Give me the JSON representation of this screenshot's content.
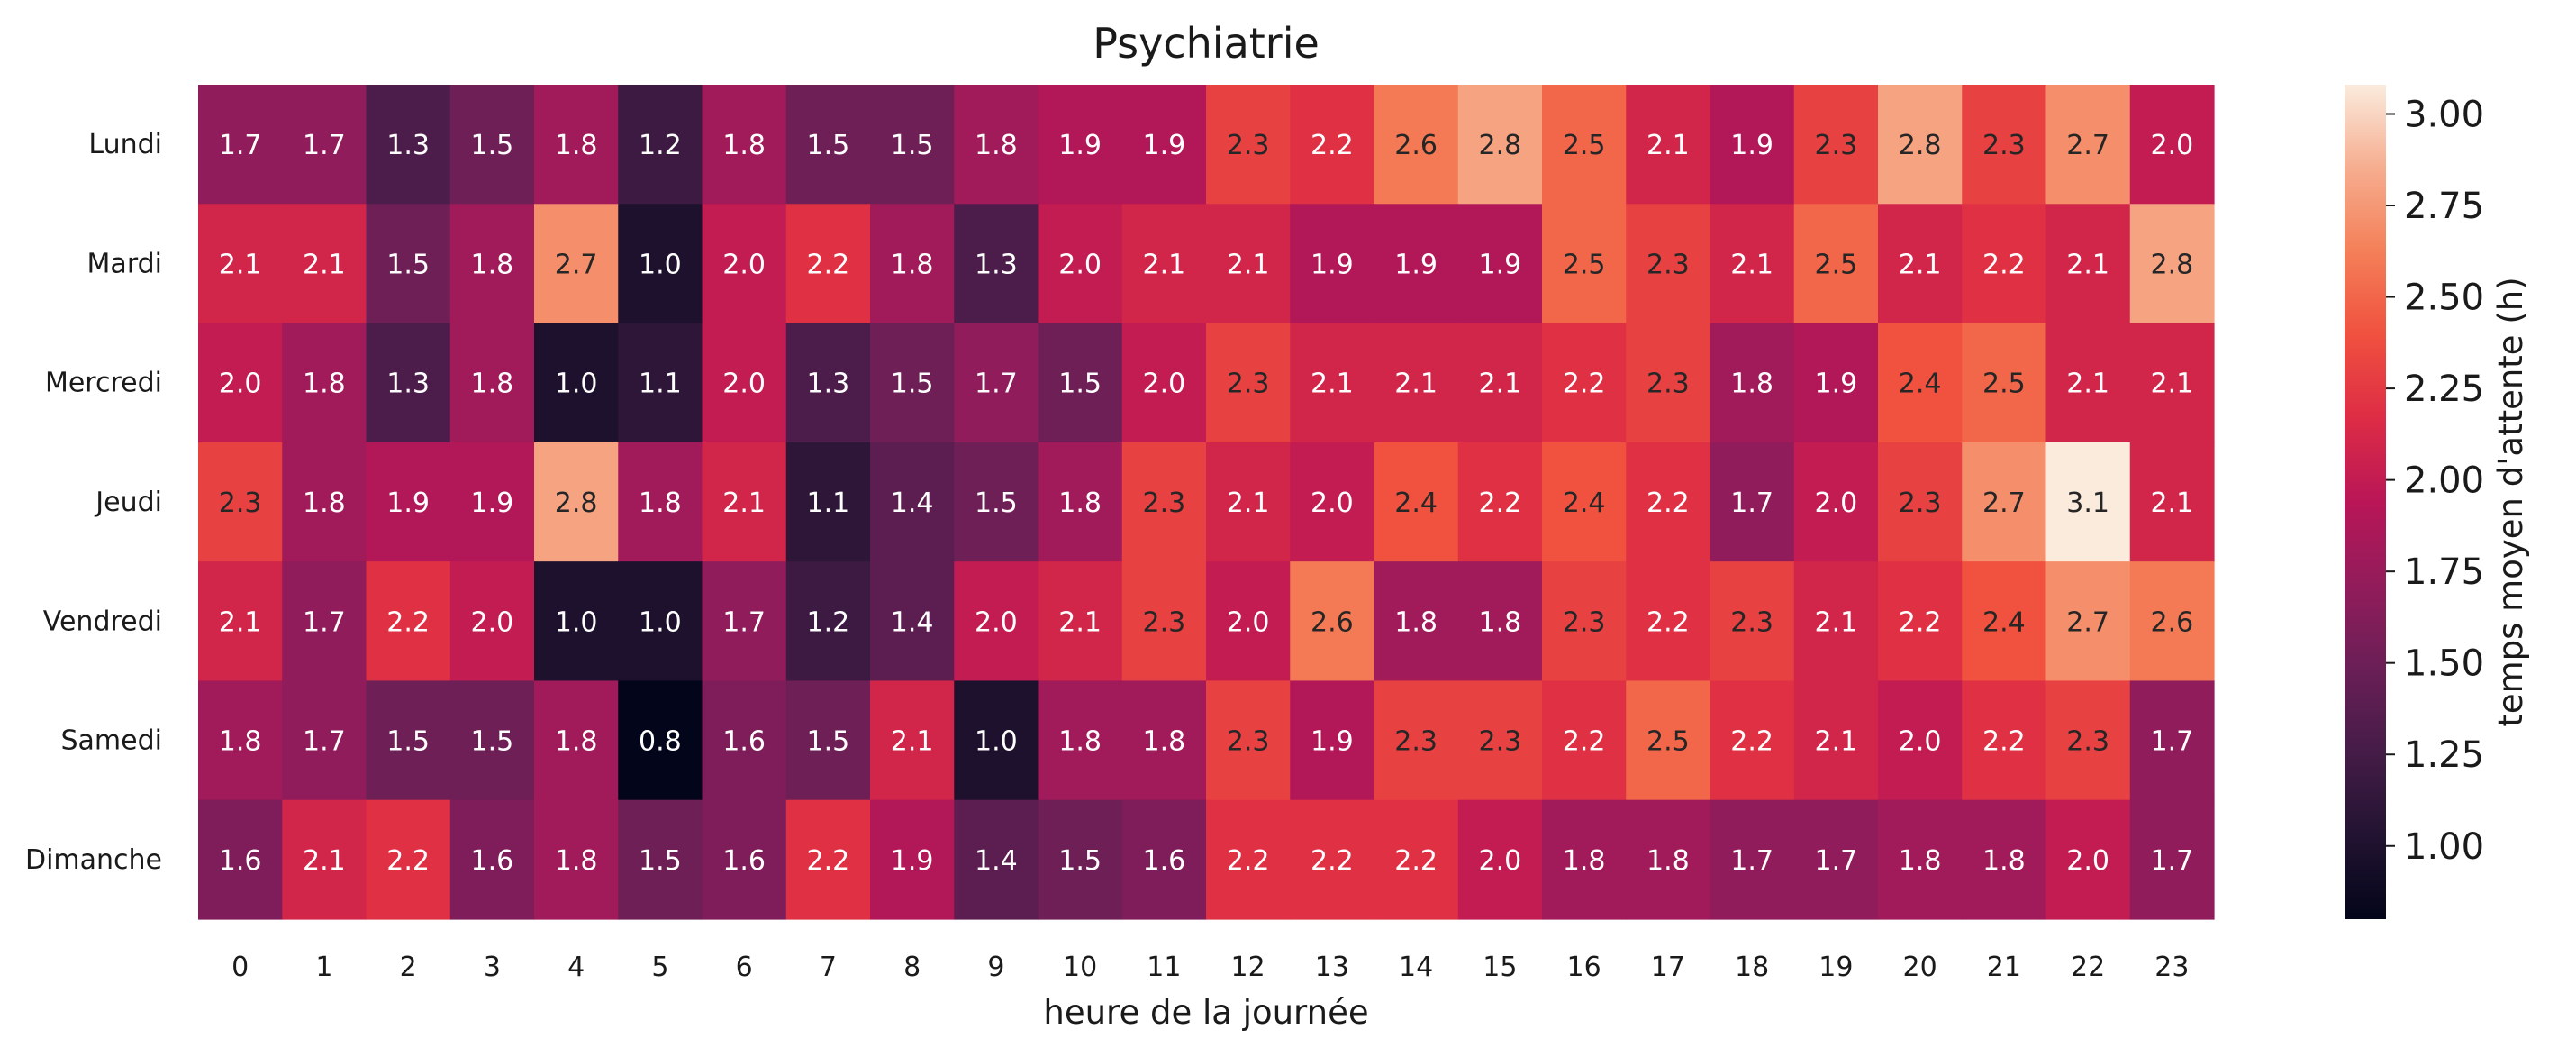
{
  "chart_data": {
    "type": "heatmap",
    "title": "Psychiatrie",
    "xlabel": "heure de la journée",
    "colorbar_label": "temps moyen d'attente (h)",
    "x_categories": [
      "0",
      "1",
      "2",
      "3",
      "4",
      "5",
      "6",
      "7",
      "8",
      "9",
      "10",
      "11",
      "12",
      "13",
      "14",
      "15",
      "16",
      "17",
      "18",
      "19",
      "20",
      "21",
      "22",
      "23"
    ],
    "y_categories": [
      "Lundi",
      "Mardi",
      "Mercredi",
      "Jeudi",
      "Vendredi",
      "Samedi",
      "Dimanche"
    ],
    "values": [
      [
        1.7,
        1.7,
        1.3,
        1.5,
        1.8,
        1.2,
        1.8,
        1.5,
        1.5,
        1.8,
        1.9,
        1.9,
        2.3,
        2.2,
        2.6,
        2.8,
        2.5,
        2.1,
        1.9,
        2.3,
        2.8,
        2.3,
        2.7,
        2.0
      ],
      [
        2.1,
        2.1,
        1.5,
        1.8,
        2.7,
        1.0,
        2.0,
        2.2,
        1.8,
        1.3,
        2.0,
        2.1,
        2.1,
        1.9,
        1.9,
        1.9,
        2.5,
        2.3,
        2.1,
        2.5,
        2.1,
        2.2,
        2.1,
        2.8
      ],
      [
        2.0,
        1.8,
        1.3,
        1.8,
        1.0,
        1.1,
        2.0,
        1.3,
        1.5,
        1.7,
        1.5,
        2.0,
        2.3,
        2.1,
        2.1,
        2.1,
        2.2,
        2.3,
        1.8,
        1.9,
        2.4,
        2.5,
        2.1,
        2.1
      ],
      [
        2.3,
        1.8,
        1.9,
        1.9,
        2.8,
        1.8,
        2.1,
        1.1,
        1.4,
        1.5,
        1.8,
        2.3,
        2.1,
        2.0,
        2.4,
        2.2,
        2.4,
        2.2,
        1.7,
        2.0,
        2.3,
        2.7,
        3.1,
        2.1
      ],
      [
        2.1,
        1.7,
        2.2,
        2.0,
        1.0,
        1.0,
        1.7,
        1.2,
        1.4,
        2.0,
        2.1,
        2.3,
        2.0,
        2.6,
        1.8,
        1.8,
        2.3,
        2.2,
        2.3,
        2.1,
        2.2,
        2.4,
        2.7,
        2.6
      ],
      [
        1.8,
        1.7,
        1.5,
        1.5,
        1.8,
        0.8,
        1.6,
        1.5,
        2.1,
        1.0,
        1.8,
        1.8,
        2.3,
        1.9,
        2.3,
        2.3,
        2.2,
        2.5,
        2.2,
        2.1,
        2.0,
        2.2,
        2.3,
        1.7
      ],
      [
        1.6,
        2.1,
        2.2,
        1.6,
        1.8,
        1.5,
        1.6,
        2.2,
        1.9,
        1.4,
        1.5,
        1.6,
        2.2,
        2.2,
        2.2,
        2.0,
        1.8,
        1.8,
        1.7,
        1.7,
        1.8,
        1.8,
        2.0,
        1.7
      ]
    ],
    "value_format": "one decimal",
    "colormap": "rocket",
    "color_range": [
      0.8,
      3.08
    ],
    "colorbar_ticks": [
      "1.00",
      "1.25",
      "1.50",
      "1.75",
      "2.00",
      "2.25",
      "2.50",
      "2.75",
      "3.00"
    ],
    "grid": false,
    "colorbar_position": "right"
  }
}
